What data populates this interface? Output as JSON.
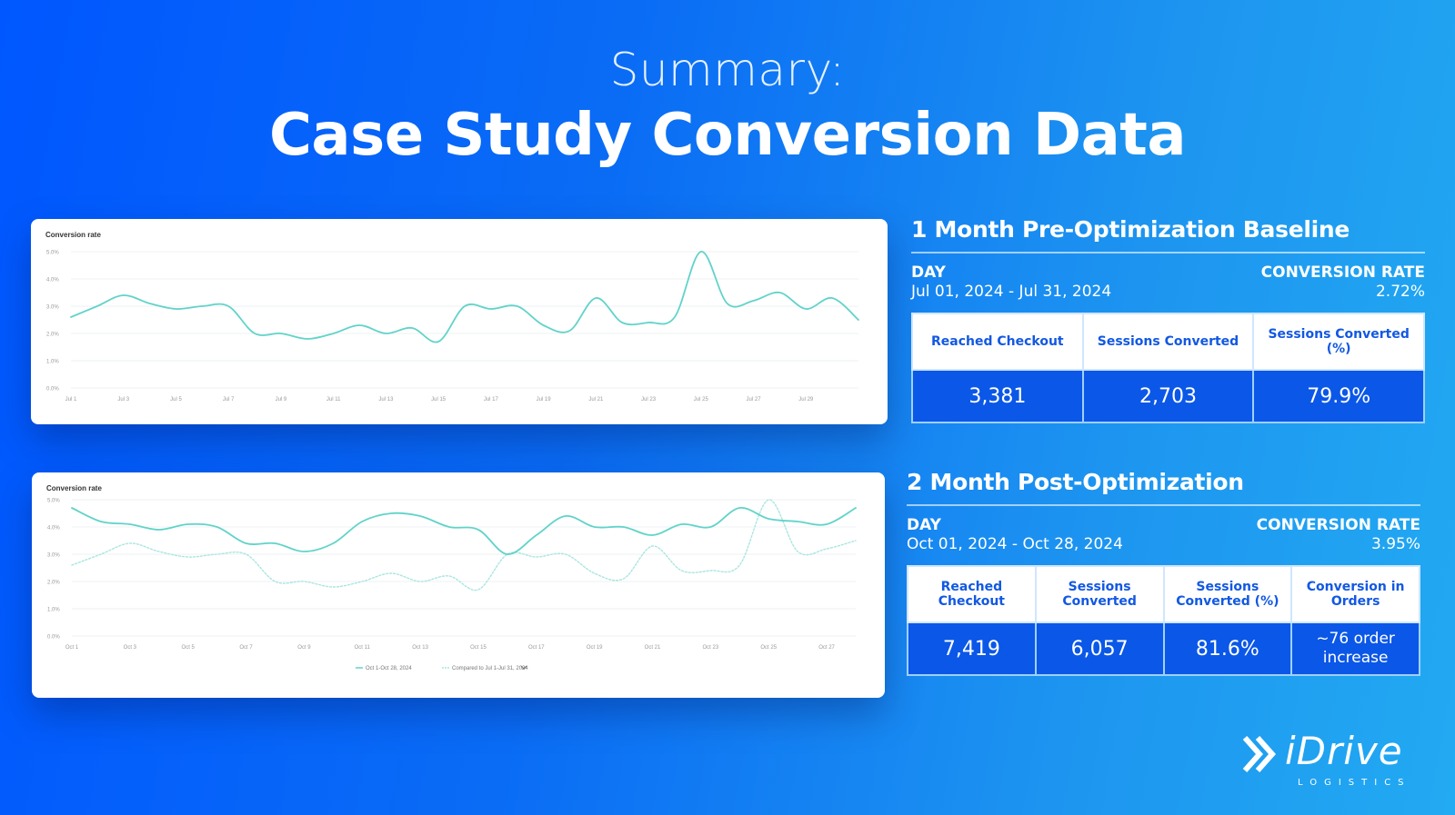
{
  "header": {
    "subtitle": "Summary:",
    "title": "Case Study Conversion Data"
  },
  "pre": {
    "heading": "1 Month Pre-Optimization Baseline",
    "day_label": "DAY",
    "date_range": "Jul 01, 2024 - Jul 31, 2024",
    "rate_label": "CONVERSION RATE",
    "rate_value": "2.72%",
    "columns": [
      "Reached Checkout",
      "Sessions Converted",
      "Sessions Converted (%)"
    ],
    "values": [
      "3,381",
      "2,703",
      "79.9%"
    ]
  },
  "post": {
    "heading": "2 Month Post-Optimization",
    "day_label": "DAY",
    "date_range": "Oct 01, 2024 - Oct 28, 2024",
    "rate_label": "CONVERSION RATE",
    "rate_value": "3.95%",
    "columns": [
      "Reached Checkout",
      "Sessions Converted",
      "Sessions Converted (%)",
      "Conversion in Orders"
    ],
    "values": [
      "7,419",
      "6,057",
      "81.6%",
      "~76 order increase"
    ]
  },
  "logo": {
    "name": "iDrive",
    "sub": "LOGISTICS"
  },
  "colors": {
    "line": "#61d3c9",
    "compare_line": "#a9e6df",
    "grid": "#eef0f3",
    "tick": "#9a9a9a"
  },
  "chart_data": [
    {
      "type": "line",
      "title": "Conversion rate",
      "xlabel": "",
      "ylabel": "",
      "ylim": [
        0,
        5.0
      ],
      "yticks": [
        "0.0%",
        "1.0%",
        "2.0%",
        "3.0%",
        "4.0%",
        "5.0%"
      ],
      "xticks": [
        "Jul 1",
        "Jul 3",
        "Jul 5",
        "Jul 7",
        "Jul 9",
        "Jul 11",
        "Jul 13",
        "Jul 15",
        "Jul 17",
        "Jul 19",
        "Jul 21",
        "Jul 23",
        "Jul 25",
        "Jul 27",
        "Jul 29"
      ],
      "grid": true,
      "series": [
        {
          "values": [
            2.6,
            3.0,
            3.4,
            3.1,
            2.9,
            3.0,
            3.0,
            2.0,
            2.0,
            1.8,
            2.0,
            2.3,
            2.0,
            2.2,
            1.7,
            3.0,
            2.9,
            3.0,
            2.3,
            2.1,
            3.3,
            2.4,
            2.4,
            2.6,
            5.0,
            3.1,
            3.2,
            3.5,
            2.9,
            3.3,
            2.5
          ]
        }
      ]
    },
    {
      "type": "line",
      "title": "Conversion rate",
      "xlabel": "",
      "ylabel": "",
      "ylim": [
        0,
        5.0
      ],
      "yticks": [
        "0.0%",
        "1.0%",
        "2.0%",
        "3.0%",
        "4.0%",
        "5.0%"
      ],
      "xticks": [
        "Oct 1",
        "Oct 3",
        "Oct 5",
        "Oct 7",
        "Oct 9",
        "Oct 11",
        "Oct 13",
        "Oct 15",
        "Oct 17",
        "Oct 19",
        "Oct 21",
        "Oct 23",
        "Oct 25",
        "Oct 27"
      ],
      "grid": true,
      "legend": "bottom",
      "series": [
        {
          "name": "Oct 1-Oct 28, 2024",
          "values": [
            4.7,
            4.2,
            4.1,
            3.9,
            4.1,
            4.0,
            3.4,
            3.4,
            3.1,
            3.4,
            4.2,
            4.5,
            4.4,
            4.0,
            3.9,
            3.0,
            3.7,
            4.4,
            4.0,
            4.0,
            3.7,
            4.1,
            4.0,
            4.7,
            4.3,
            4.2,
            4.1,
            4.7
          ]
        },
        {
          "name": "Compared to Jul 1-Jul 31, 2024",
          "values": [
            2.6,
            3.0,
            3.4,
            3.1,
            2.9,
            3.0,
            3.0,
            2.0,
            2.0,
            1.8,
            2.0,
            2.3,
            2.0,
            2.2,
            1.7,
            3.0,
            2.9,
            3.0,
            2.3,
            2.1,
            3.3,
            2.4,
            2.4,
            2.6,
            5.0,
            3.1,
            3.2,
            3.5
          ]
        }
      ]
    }
  ]
}
